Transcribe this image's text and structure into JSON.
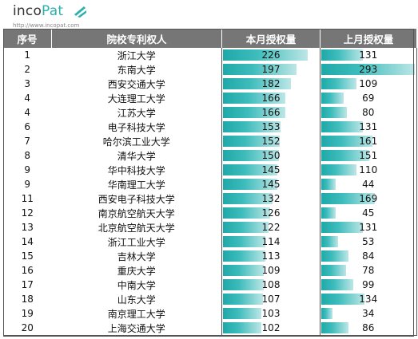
{
  "logo": {
    "prefix": "inco",
    "suffix": "Pat",
    "url": "http://www.incopat.com"
  },
  "colors": {
    "header_bg": "#767676",
    "bar_start": "#1fa8a8",
    "bar_end": "#bde6e6",
    "accent": "#2bb0b0"
  },
  "table": {
    "headers": {
      "rank": "序号",
      "name": "院校专利权人",
      "current": "本月授权量",
      "previous": "上月授权量"
    },
    "rows": [
      {
        "rank": "1",
        "name": "浙江大学",
        "current": 226,
        "previous": 131
      },
      {
        "rank": "2",
        "name": "东南大学",
        "current": 197,
        "previous": 293
      },
      {
        "rank": "3",
        "name": "西安交通大学",
        "current": 182,
        "previous": 109
      },
      {
        "rank": "4",
        "name": "大连理工大学",
        "current": 166,
        "previous": 69
      },
      {
        "rank": "4",
        "name": "江苏大学",
        "current": 166,
        "previous": 80
      },
      {
        "rank": "6",
        "name": "电子科技大学",
        "current": 153,
        "previous": 131
      },
      {
        "rank": "7",
        "name": "哈尔滨工业大学",
        "current": 152,
        "previous": 161
      },
      {
        "rank": "8",
        "name": "清华大学",
        "current": 150,
        "previous": 151
      },
      {
        "rank": "9",
        "name": "华中科技大学",
        "current": 145,
        "previous": 110
      },
      {
        "rank": "9",
        "name": "华南理工大学",
        "current": 145,
        "previous": 44
      },
      {
        "rank": "11",
        "name": "西安电子科技大学",
        "current": 132,
        "previous": 169
      },
      {
        "rank": "12",
        "name": "南京航空航天大学",
        "current": 126,
        "previous": 45
      },
      {
        "rank": "13",
        "name": "北京航空航天大学",
        "current": 122,
        "previous": 131
      },
      {
        "rank": "14",
        "name": "浙江工业大学",
        "current": 114,
        "previous": 53
      },
      {
        "rank": "15",
        "name": "吉林大学",
        "current": 113,
        "previous": 84
      },
      {
        "rank": "16",
        "name": "重庆大学",
        "current": 109,
        "previous": 78
      },
      {
        "rank": "17",
        "name": "中南大学",
        "current": 108,
        "previous": 99
      },
      {
        "rank": "18",
        "name": "山东大学",
        "current": 107,
        "previous": 134
      },
      {
        "rank": "19",
        "name": "南京理工大学",
        "current": 103,
        "previous": 34
      },
      {
        "rank": "20",
        "name": "上海交通大学",
        "current": 102,
        "previous": 86
      }
    ]
  }
}
